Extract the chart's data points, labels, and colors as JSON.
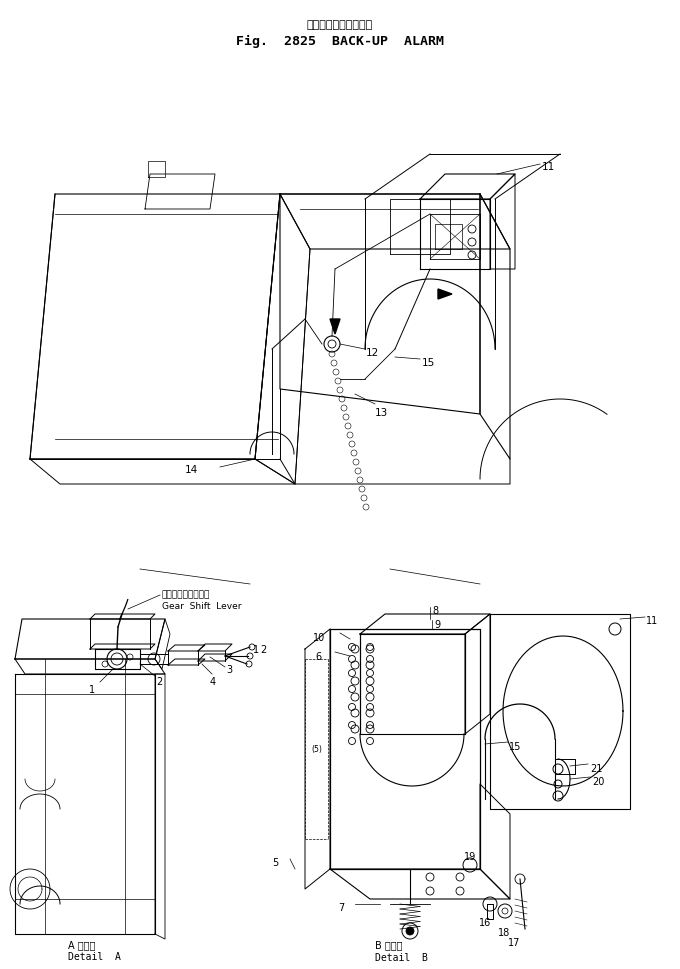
{
  "title_japanese": "バックアップアラーム",
  "title_english": "Fig.  2825  BACK-UP  ALARM",
  "bg_color": "#ffffff",
  "line_color": "#000000",
  "detail_a_label_japanese": "ギヤーシフトレバー",
  "detail_a_label_english": "Gear  Shift  Lever",
  "detail_a_caption_japanese": "A 詳細図",
  "detail_a_caption": "Detail  A",
  "detail_b_caption_japanese": "B 詳細図",
  "detail_b_caption": "Detail  B"
}
